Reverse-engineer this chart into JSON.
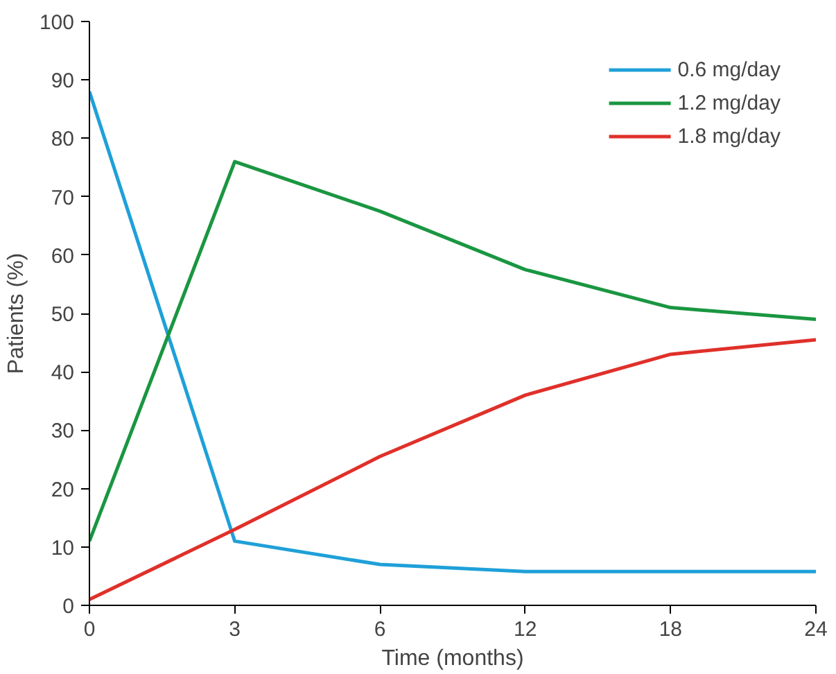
{
  "chart_data": {
    "type": "line",
    "xlabel": "Time (months)",
    "ylabel": "Patients (%)",
    "categories": [
      "0",
      "3",
      "6",
      "12",
      "18",
      "24"
    ],
    "ylim": [
      0,
      100
    ],
    "yticks": [
      0,
      10,
      20,
      30,
      40,
      50,
      60,
      70,
      80,
      90,
      100
    ],
    "grid": false,
    "legend": "top right",
    "marker": "none",
    "line_style": "solid",
    "series": [
      {
        "name": "0.6 mg/day",
        "color": "#1fa0d8",
        "values": [
          88,
          11,
          7,
          5.8,
          5.8,
          5.8
        ]
      },
      {
        "name": "1.2 mg/day",
        "color": "#1a9641",
        "values": [
          11,
          76,
          67.5,
          57.5,
          51,
          49
        ]
      },
      {
        "name": "1.8 mg/day",
        "color": "#e0302a",
        "values": [
          1,
          13,
          25.5,
          36,
          43,
          45.5
        ]
      }
    ]
  }
}
